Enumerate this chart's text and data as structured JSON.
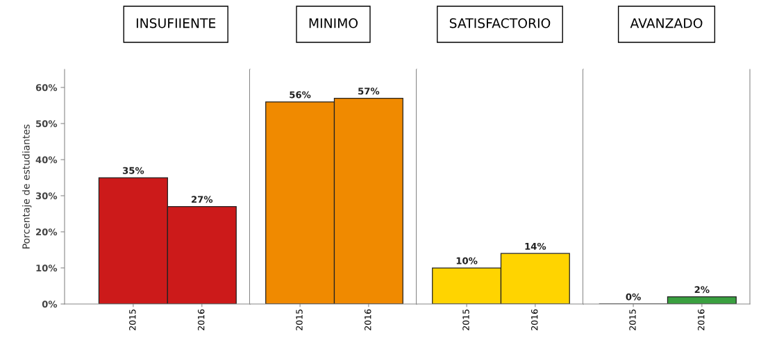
{
  "chart_data": [
    {
      "type": "bar",
      "title": "INSUFIIENTE",
      "ylabel": "Porcentaje de estudiantes",
      "categories": [
        "2015",
        "2016"
      ],
      "values": [
        35,
        27
      ],
      "color": "#cc1a1a",
      "ylim": [
        0,
        65
      ],
      "yticks": [
        {
          "value": 0,
          "label": "0%"
        },
        {
          "value": 10,
          "label": "10%"
        },
        {
          "value": 20,
          "label": "20%"
        },
        {
          "value": 30,
          "label": "30%"
        },
        {
          "value": 40,
          "label": "40%"
        },
        {
          "value": 50,
          "label": "50%"
        },
        {
          "value": 60,
          "label": "60%"
        }
      ],
      "value_labels": [
        "35%",
        "27%"
      ],
      "grid": false
    },
    {
      "type": "bar",
      "title": "MINIMO",
      "categories": [
        "2015",
        "2016"
      ],
      "values": [
        56,
        57
      ],
      "color": "#f08a00",
      "ylim": [
        0,
        65
      ],
      "value_labels": [
        "56%",
        "57%"
      ],
      "tick_labels": "x",
      "grid": false
    },
    {
      "type": "bar",
      "title": "SATISFACTORIO",
      "categories": [
        "2015",
        "2016"
      ],
      "values": [
        10,
        14
      ],
      "color": "#ffd400",
      "ylim": [
        0,
        65
      ],
      "value_labels": [
        "10%",
        "14%"
      ],
      "tick_labels": "x",
      "grid": false
    },
    {
      "type": "bar",
      "title": "AVANZADO",
      "categories": [
        "2015",
        "2016"
      ],
      "values": [
        0,
        2
      ],
      "color": "#3aa040",
      "ylim": [
        0,
        65
      ],
      "value_labels": [
        "0%",
        "2%"
      ],
      "tick_labels": "x",
      "grid": false
    }
  ]
}
